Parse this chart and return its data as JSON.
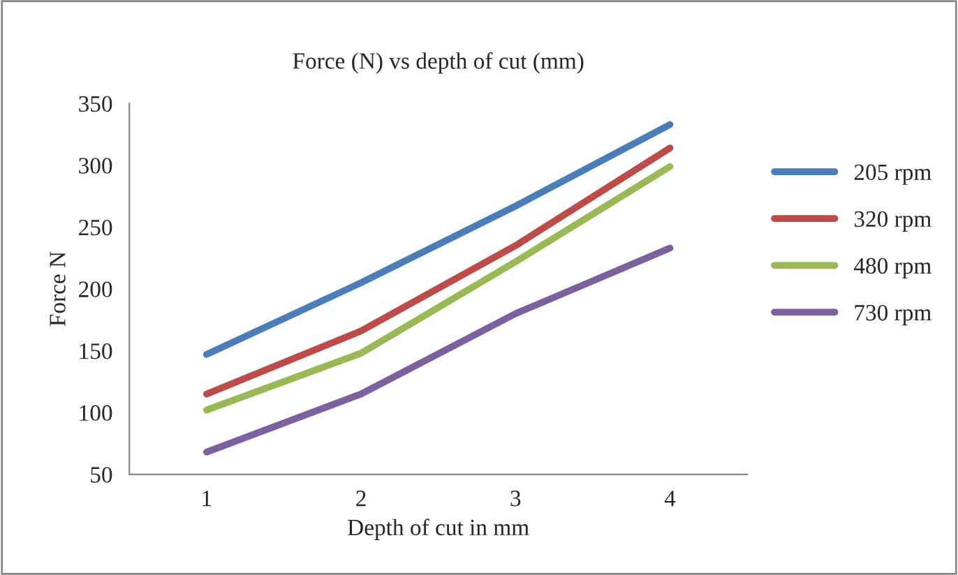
{
  "chart_data": {
    "type": "line",
    "title": "Force (N) vs depth of cut (mm)",
    "xlabel": "Depth of cut in mm",
    "ylabel": "Force N",
    "categories": [
      "1",
      "2",
      "3",
      "4"
    ],
    "series": [
      {
        "name": "205 rpm",
        "color": "#4a7ebb",
        "values": [
          147,
          205,
          267,
          333
        ]
      },
      {
        "name": "320 rpm",
        "color": "#be4b48",
        "values": [
          115,
          166,
          235,
          314
        ]
      },
      {
        "name": "480 rpm",
        "color": "#98b954",
        "values": [
          102,
          148,
          222,
          299
        ]
      },
      {
        "name": "730 rpm",
        "color": "#7d60a0",
        "values": [
          68,
          115,
          180,
          233
        ]
      }
    ],
    "ylim": [
      50,
      350
    ],
    "yticks": [
      50,
      100,
      150,
      200,
      250,
      300,
      350
    ],
    "grid": false,
    "legend": "right",
    "marker": "none",
    "line_style": "solid"
  }
}
